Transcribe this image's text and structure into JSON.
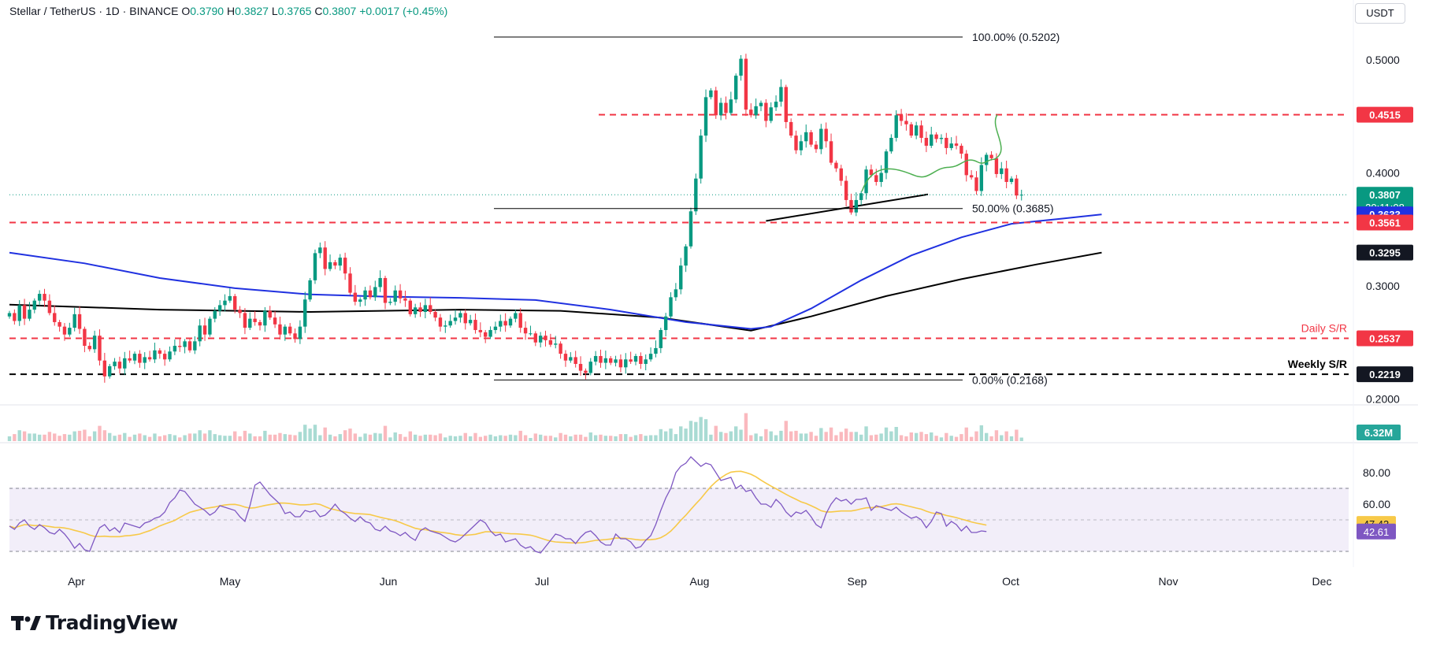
{
  "header": {
    "symbol": "Stellar / TetherUS · 1D · BINANCE",
    "o_label": "O",
    "o_val": "0.3790",
    "h_label": "H",
    "h_val": "0.3827",
    "l_label": "L",
    "l_val": "0.3765",
    "c_label": "C",
    "c_val": "0.3807",
    "change": "+0.0017 (+0.45%)"
  },
  "currency": "USDT",
  "brand": "TradingView",
  "colors": {
    "up": "#089981",
    "down": "#f23645",
    "ma100": "#2031e0",
    "ma200": "#000000",
    "rsi": "#7e57c2",
    "rsi_ma": "#f7c948",
    "forecast": "#4caf50",
    "fib": "#000000"
  },
  "chart_data": {
    "type": "candlestick",
    "y_scale": "price",
    "ylim": [
      0.196,
      0.534
    ],
    "ytick_labels": [
      "0.5000",
      "0.4000",
      "0.3000",
      "0.2000"
    ],
    "yticks": [
      0.5,
      0.4,
      0.3,
      0.2
    ],
    "xtick_labels": [
      "Apr",
      "May",
      "Jun",
      "Jul",
      "Aug",
      "Sep",
      "Oct",
      "Nov",
      "Dec"
    ],
    "price_labels": [
      {
        "text": "0.4515",
        "price": 0.4515,
        "color": "#f23645"
      },
      {
        "text": "0.3807",
        "sub": "20:11:08",
        "price": 0.3807,
        "color": "#089981"
      },
      {
        "text": "0.3633",
        "price": 0.3633,
        "color": "#2031e0"
      },
      {
        "text": "0.3561",
        "price": 0.3561,
        "color": "#f23645"
      },
      {
        "text": "0.3295",
        "price": 0.3295,
        "color": "#131722"
      },
      {
        "text": "0.2537",
        "price": 0.2537,
        "color": "#f23645"
      },
      {
        "text": "0.2219",
        "price": 0.2219,
        "color": "#131722"
      }
    ],
    "fib_levels": [
      {
        "label": "100.00% (0.5202)",
        "price": 0.5202
      },
      {
        "label": "50.00% (0.3685)",
        "price": 0.3685
      },
      {
        "label": "0.00% (0.2168)",
        "price": 0.2168
      }
    ],
    "horizontal_levels": [
      {
        "name": "Daily S/R",
        "price": 0.2537,
        "style": "dashed",
        "color": "#f23645"
      },
      {
        "name": "Weekly S/R",
        "price": 0.2219,
        "style": "dashed",
        "color": "#000000"
      },
      {
        "name": "",
        "price": 0.4515,
        "style": "dashed",
        "color": "#f23645"
      },
      {
        "name": "",
        "price": 0.3561,
        "style": "dashed",
        "color": "#f23645"
      }
    ],
    "close_series": [
      0.276,
      0.269,
      0.283,
      0.271,
      0.279,
      0.287,
      0.293,
      0.287,
      0.276,
      0.268,
      0.264,
      0.257,
      0.263,
      0.275,
      0.262,
      0.247,
      0.244,
      0.256,
      0.234,
      0.22,
      0.229,
      0.233,
      0.227,
      0.236,
      0.234,
      0.24,
      0.232,
      0.237,
      0.235,
      0.243,
      0.24,
      0.235,
      0.242,
      0.247,
      0.246,
      0.251,
      0.243,
      0.251,
      0.265,
      0.257,
      0.271,
      0.278,
      0.283,
      0.287,
      0.291,
      0.279,
      0.276,
      0.263,
      0.271,
      0.268,
      0.265,
      0.278,
      0.272,
      0.266,
      0.257,
      0.264,
      0.258,
      0.253,
      0.264,
      0.288,
      0.305,
      0.329,
      0.334,
      0.315,
      0.321,
      0.318,
      0.325,
      0.311,
      0.294,
      0.286,
      0.288,
      0.296,
      0.29,
      0.299,
      0.307,
      0.285,
      0.286,
      0.296,
      0.289,
      0.287,
      0.275,
      0.281,
      0.277,
      0.283,
      0.277,
      0.272,
      0.264,
      0.265,
      0.269,
      0.272,
      0.276,
      0.267,
      0.27,
      0.261,
      0.259,
      0.255,
      0.261,
      0.264,
      0.269,
      0.265,
      0.271,
      0.276,
      0.263,
      0.258,
      0.258,
      0.25,
      0.256,
      0.252,
      0.248,
      0.249,
      0.24,
      0.234,
      0.237,
      0.231,
      0.225,
      0.223,
      0.233,
      0.238,
      0.232,
      0.236,
      0.232,
      0.235,
      0.228,
      0.235,
      0.233,
      0.238,
      0.231,
      0.235,
      0.24,
      0.245,
      0.261,
      0.273,
      0.29,
      0.297,
      0.318,
      0.335,
      0.366,
      0.395,
      0.433,
      0.467,
      0.473,
      0.451,
      0.462,
      0.453,
      0.465,
      0.486,
      0.501,
      0.456,
      0.451,
      0.459,
      0.462,
      0.446,
      0.458,
      0.463,
      0.476,
      0.445,
      0.433,
      0.42,
      0.428,
      0.436,
      0.425,
      0.421,
      0.439,
      0.428,
      0.409,
      0.404,
      0.393,
      0.376,
      0.365,
      0.376,
      0.382,
      0.403,
      0.398,
      0.392,
      0.4,
      0.419,
      0.431,
      0.451,
      0.446,
      0.443,
      0.433,
      0.442,
      0.431,
      0.424,
      0.434,
      0.43,
      0.431,
      0.422,
      0.426,
      0.424,
      0.417,
      0.398,
      0.396,
      0.384,
      0.407,
      0.416,
      0.413,
      0.399,
      0.404,
      0.392,
      0.395,
      0.38,
      0.3807
    ],
    "ma100_series": [
      {
        "date": "Mar 17",
        "value": 0.3295
      },
      {
        "date": "Jun 30",
        "value": 0.2595
      },
      {
        "date": "Aug 26",
        "value": 0.3633
      }
    ],
    "ma200_series": [
      {
        "date": "Mar 17",
        "value": 0.2835
      },
      {
        "date": "Jul 1",
        "value": 0.2605
      },
      {
        "date": "Aug 26",
        "value": 0.3295
      }
    ],
    "volume_label": "6.32M",
    "rsi": {
      "ylim": [
        17,
        95
      ],
      "ytick_labels": [
        "80.00",
        "60.00"
      ],
      "yticks": [
        80,
        60
      ],
      "bands": [
        70,
        50,
        30
      ],
      "value_label": "42.61",
      "value": 42.61,
      "ma_label": "47.43",
      "ma_value": 47.43,
      "series": [
        46,
        44,
        48,
        50,
        46,
        44,
        47,
        45,
        42,
        41,
        44,
        41,
        37,
        32,
        35,
        31,
        30,
        38,
        45,
        47,
        43,
        45,
        42,
        48,
        47,
        46,
        45,
        48,
        49,
        51,
        52,
        55,
        61,
        64,
        69,
        68,
        64,
        60,
        58,
        56,
        53,
        55,
        59,
        58,
        57,
        56,
        52,
        49,
        59,
        72,
        74,
        70,
        66,
        63,
        60,
        54,
        55,
        52,
        52,
        56,
        55,
        56,
        52,
        53,
        56,
        60,
        56,
        54,
        51,
        49,
        52,
        49,
        48,
        44,
        43,
        46,
        43,
        42,
        40,
        42,
        39,
        37,
        43,
        45,
        43,
        42,
        41,
        39,
        37,
        36,
        38,
        41,
        44,
        47,
        50,
        48,
        43,
        40,
        41,
        36,
        37,
        38,
        34,
        32,
        33,
        30,
        29,
        33,
        37,
        41,
        40,
        38,
        38,
        35,
        39,
        42,
        43,
        40,
        36,
        34,
        34,
        41,
        38,
        38,
        36,
        32,
        33,
        37,
        40,
        47,
        56,
        64,
        70,
        80,
        84,
        86,
        90,
        87,
        84,
        86,
        85,
        80,
        75,
        76,
        77,
        70,
        72,
        68,
        69,
        64,
        60,
        60,
        58,
        63,
        60,
        55,
        52,
        55,
        54,
        56,
        52,
        47,
        45,
        54,
        60,
        64,
        62,
        63,
        60,
        63,
        63,
        64,
        56,
        59,
        58,
        57,
        56,
        58,
        55,
        53,
        51,
        52,
        50,
        45,
        49,
        55,
        54,
        46,
        49,
        47,
        43,
        46,
        42,
        42,
        43,
        42.61
      ]
    },
    "annotations": [
      "forecast path toward 0.4515"
    ]
  }
}
